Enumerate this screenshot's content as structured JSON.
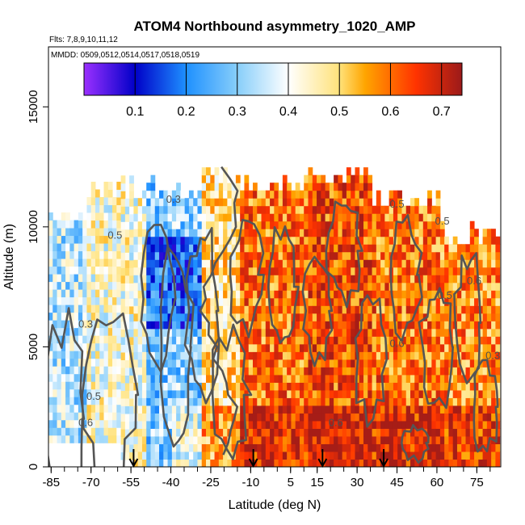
{
  "chart_data": {
    "type": "heatmap",
    "title": "ATOM4 Northbound asymmetry_1020_AMP",
    "subtitle_flights": "Flts: 7,8,9,10,11,12",
    "subtitle_dates": "MMDD: 0509,0512,0514,0517,0518,0519",
    "xlabel": "Latitude (deg N)",
    "ylabel": "Altitude (m)",
    "xlim": [
      -86,
      84
    ],
    "ylim": [
      0,
      17500
    ],
    "x_ticks": [
      -85,
      -70,
      -55,
      -40,
      -25,
      -10,
      5,
      15,
      30,
      45,
      60,
      75
    ],
    "x_tick_labels": [
      "-85",
      "-70",
      "-55",
      "-40",
      "-25",
      "-10",
      "5",
      "15",
      "30",
      "45",
      "60",
      "75"
    ],
    "x_minor_step": 5,
    "y_ticks": [
      0,
      5000,
      10000,
      15000
    ],
    "y_tick_labels": [
      "0",
      "5000",
      "10000",
      "15000"
    ],
    "colorbar": {
      "range": [
        0.0,
        0.74
      ],
      "ticks": [
        0.1,
        0.2,
        0.3,
        0.4,
        0.5,
        0.6,
        0.7
      ],
      "tick_labels": [
        "0.1",
        "0.2",
        "0.3",
        "0.4",
        "0.5",
        "0.6",
        "0.7"
      ],
      "colors": [
        "#9b30ff",
        "#0000c8",
        "#1e90ff",
        "#87cefa",
        "#ffffff",
        "#ffe27a",
        "#ffa500",
        "#ff3300",
        "#9b1a1a"
      ],
      "stops": [
        0.0,
        0.1,
        0.2,
        0.3,
        0.4,
        0.5,
        0.55,
        0.65,
        0.74
      ]
    },
    "arrow_latitudes": [
      -54,
      -9,
      17,
      40
    ],
    "contour_labels": [
      {
        "text": "0.3",
        "lat": -39,
        "alt": 11000
      },
      {
        "text": "0.3",
        "lat": -72,
        "alt": 5800
      },
      {
        "text": "0.5",
        "lat": -61,
        "alt": 9500
      },
      {
        "text": "0.5",
        "lat": -69,
        "alt": 2800
      },
      {
        "text": "0.6",
        "lat": -72,
        "alt": 1700
      },
      {
        "text": "0.5",
        "lat": 45,
        "alt": 10800
      },
      {
        "text": "0.5",
        "lat": 62,
        "alt": 10100
      },
      {
        "text": "0.6",
        "lat": 22,
        "alt": 1700
      },
      {
        "text": "0.6",
        "lat": 45,
        "alt": 5000
      },
      {
        "text": "0.6",
        "lat": 74,
        "alt": 7600
      },
      {
        "text": "0.5",
        "lat": 63,
        "alt": 7000
      },
      {
        "text": "0.3",
        "lat": 81,
        "alt": 4500
      }
    ],
    "regions_value_profile": [
      {
        "lat_range": [
          -86,
          -72
        ],
        "alt_range": [
          0,
          10500
        ],
        "mean": 0.34
      },
      {
        "lat_range": [
          -72,
          -50
        ],
        "alt_range": [
          0,
          12000
        ],
        "mean": 0.42
      },
      {
        "lat_range": [
          -50,
          -30
        ],
        "alt_range": [
          0,
          12000
        ],
        "mean": 0.3
      },
      {
        "lat_range": [
          -30,
          -15
        ],
        "alt_range": [
          0,
          12500
        ],
        "mean": 0.48
      },
      {
        "lat_range": [
          -15,
          10
        ],
        "alt_range": [
          0,
          12000
        ],
        "mean": 0.6
      },
      {
        "lat_range": [
          10,
          35
        ],
        "alt_range": [
          0,
          12500
        ],
        "mean": 0.63
      },
      {
        "lat_range": [
          35,
          60
        ],
        "alt_range": [
          0,
          11500
        ],
        "mean": 0.6
      },
      {
        "lat_range": [
          60,
          83
        ],
        "alt_range": [
          0,
          10000
        ],
        "mean": 0.57
      }
    ]
  }
}
